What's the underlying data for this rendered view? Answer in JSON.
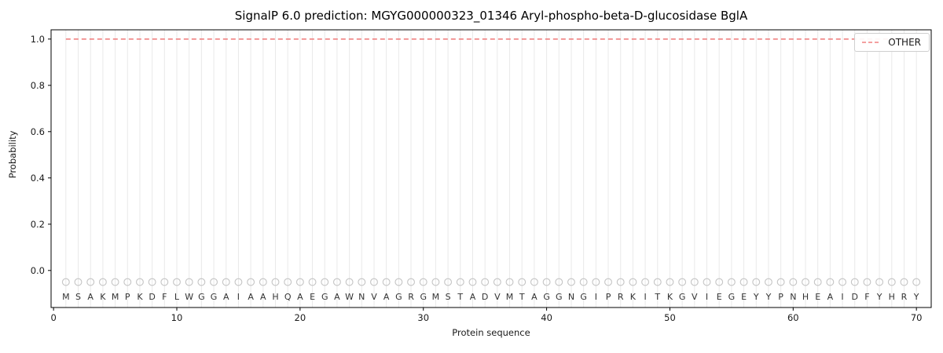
{
  "chart_data": {
    "type": "line",
    "title": "SignalP 6.0 prediction: MGYG000000323_01346 Aryl-phospho-beta-D-glucosidase BglA",
    "xlabel": "Protein sequence",
    "ylabel": "Probability",
    "xlim": [
      -0.2,
      71.2
    ],
    "ylim": [
      -0.16,
      1.04
    ],
    "xticks": [
      0,
      10,
      20,
      30,
      40,
      50,
      60,
      70
    ],
    "ytick_labels": [
      "0.0",
      "0.2",
      "0.4",
      "0.6",
      "0.8",
      "1.0"
    ],
    "grid": {
      "vertical_per_residue": true,
      "horizontal": false,
      "color": "#e9e9e9"
    },
    "axes_color": "#000000",
    "legend": {
      "position": "upper-right",
      "entries": [
        {
          "label": "OTHER",
          "color": "#f08080",
          "linestyle": "dashed"
        }
      ]
    },
    "series": [
      {
        "name": "OTHER",
        "color": "#f08080",
        "linestyle": "dashed",
        "x_start": 1,
        "x_end": 70,
        "y_constant": 1.0
      }
    ],
    "sequence": "MSAKMPKDFLWGGAIAAHQAEGAWNVAGRGMSTADVMTAGGNGIPRKITKGVIEGEYYPNHEAIDFYHRY",
    "sequence_positions": {
      "first": 1,
      "last": 70
    },
    "residue_markers": {
      "symbol": "open-circle",
      "y": -0.05,
      "color": "#c4c4c4"
    },
    "residue_letters": {
      "y": -0.112,
      "color": "#333333"
    }
  }
}
